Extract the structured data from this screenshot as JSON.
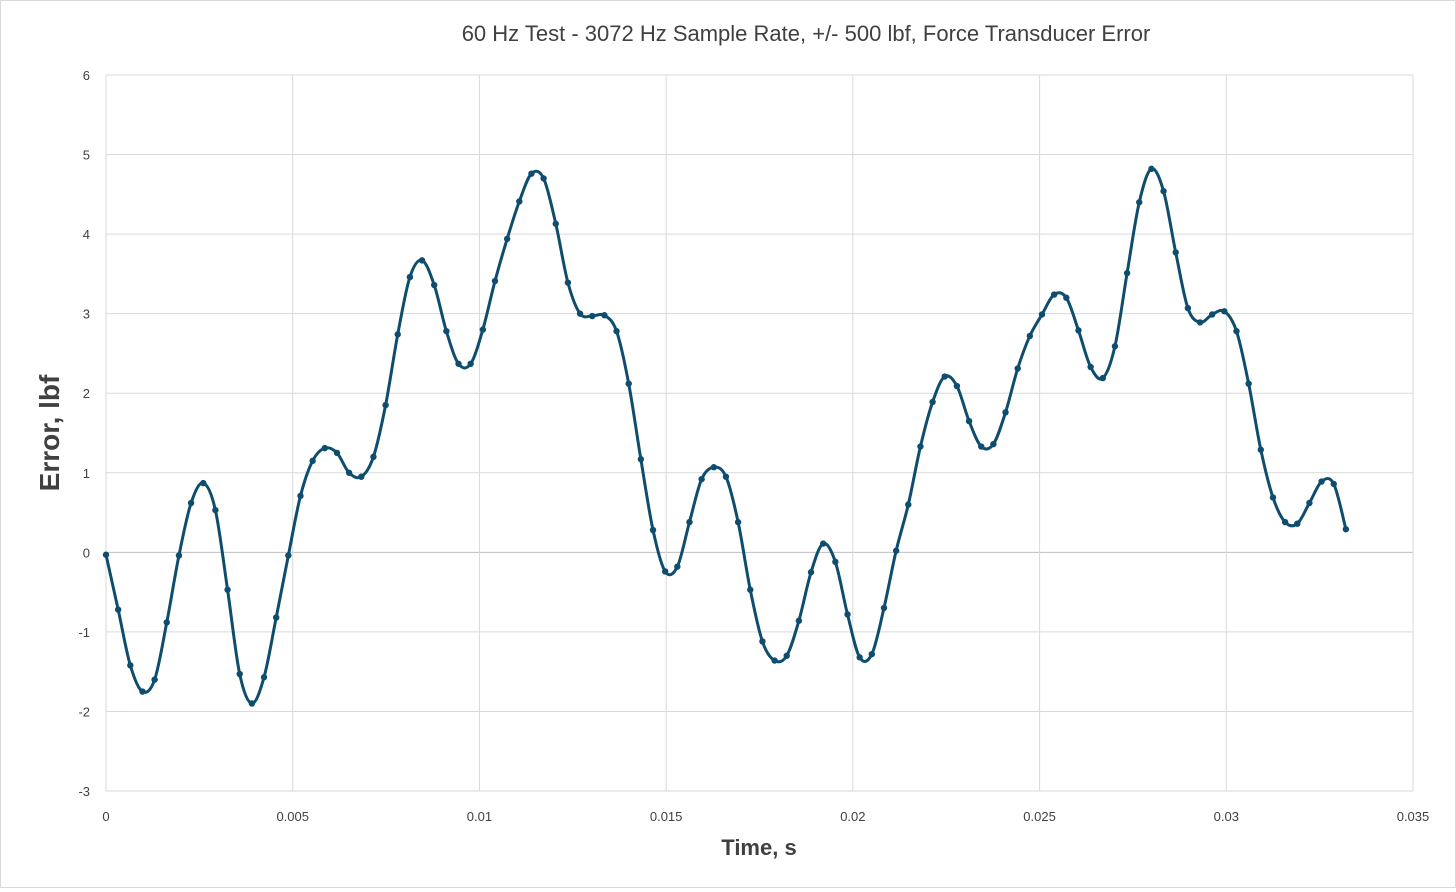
{
  "chart_data": {
    "type": "scatter",
    "title": "60 Hz Test - 3072 Hz Sample Rate, +/- 500 lbf, Force Transducer Error",
    "xlabel": "Time, s",
    "ylabel": "Error, lbf",
    "xlim": [
      0,
      0.035
    ],
    "ylim": [
      -3,
      6
    ],
    "x_ticks": [
      "0",
      "0.005",
      "0.01",
      "0.015",
      "0.02",
      "0.025",
      "0.03",
      "0.035"
    ],
    "y_ticks": [
      "-3",
      "-2",
      "-1",
      "0",
      "1",
      "2",
      "3",
      "4",
      "5",
      "6"
    ],
    "grid": true,
    "smooth_line": true,
    "markers": true,
    "color": "#0e4d6e",
    "series": [
      {
        "sample_interval_s": 0.00032552,
        "values": [
          -0.03,
          -0.72,
          -1.42,
          -1.75,
          -1.6,
          -0.88,
          -0.04,
          0.62,
          0.87,
          0.53,
          -0.47,
          -1.53,
          -1.9,
          -1.57,
          -0.82,
          -0.04,
          0.71,
          1.15,
          1.31,
          1.25,
          1.0,
          0.95,
          1.2,
          1.85,
          2.74,
          3.46,
          3.67,
          3.36,
          2.78,
          2.37,
          2.37,
          2.8,
          3.41,
          3.94,
          4.41,
          4.76,
          4.7,
          4.13,
          3.39,
          3.0,
          2.97,
          2.98,
          2.78,
          2.12,
          1.17,
          0.28,
          -0.24,
          -0.18,
          0.38,
          0.92,
          1.07,
          0.95,
          0.38,
          -0.47,
          -1.12,
          -1.36,
          -1.3,
          -0.86,
          -0.25,
          0.11,
          -0.12,
          -0.78,
          -1.32,
          -1.28,
          -0.7,
          0.02,
          0.6,
          1.33,
          1.89,
          2.21,
          2.09,
          1.65,
          1.33,
          1.36,
          1.76,
          2.31,
          2.72,
          2.99,
          3.24,
          3.2,
          2.79,
          2.33,
          2.19,
          2.59,
          3.51,
          4.4,
          4.82,
          4.54,
          3.77,
          3.07,
          2.89,
          2.99,
          3.03,
          2.78,
          2.12,
          1.29,
          0.69,
          0.38,
          0.36,
          0.62,
          0.89,
          0.86,
          0.29
        ]
      }
    ]
  }
}
